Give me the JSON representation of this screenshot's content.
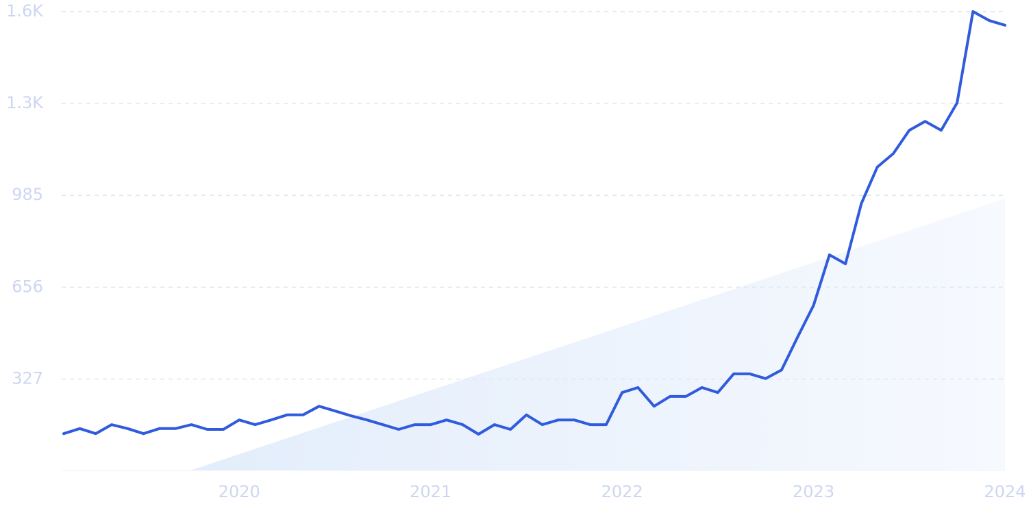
{
  "chart_data": {
    "type": "line",
    "x": [
      2019.083,
      2019.167,
      2019.25,
      2019.333,
      2019.417,
      2019.5,
      2019.583,
      2019.667,
      2019.75,
      2019.833,
      2019.917,
      2020,
      2020.083,
      2020.167,
      2020.25,
      2020.333,
      2020.417,
      2020.5,
      2020.583,
      2020.667,
      2020.75,
      2020.833,
      2020.917,
      2021,
      2021.083,
      2021.167,
      2021.25,
      2021.333,
      2021.417,
      2021.5,
      2021.583,
      2021.667,
      2021.75,
      2021.833,
      2021.917,
      2022,
      2022.083,
      2022.167,
      2022.25,
      2022.333,
      2022.417,
      2022.5,
      2022.583,
      2022.667,
      2022.75,
      2022.833,
      2022.917,
      2023,
      2023.083,
      2023.167,
      2023.25,
      2023.333,
      2023.417,
      2023.5,
      2023.583,
      2023.667,
      2023.75,
      2023.833,
      2023.917,
      2024
    ],
    "values": [
      132,
      150,
      132,
      164,
      150,
      132,
      150,
      150,
      164,
      147,
      147,
      181,
      164,
      181,
      199,
      199,
      230,
      213,
      196,
      181,
      164,
      147,
      164,
      164,
      181,
      164,
      130,
      164,
      147,
      199,
      164,
      181,
      181,
      164,
      164,
      279,
      297,
      230,
      265,
      265,
      297,
      279,
      346,
      346,
      329,
      360,
      478,
      591,
      772,
      740,
      956,
      1086,
      1135,
      1218,
      1250,
      1218,
      1316,
      1643,
      1611,
      1594
    ],
    "color": "#2f5bdc",
    "xlim": [
      2019.083,
      2024
    ],
    "xticks": [
      2020,
      2021,
      2022,
      2023,
      2024
    ],
    "ylim": [
      0,
      1650
    ],
    "yticks": [
      327,
      656,
      985,
      {
        "value": 1314,
        "label": "1.3K"
      },
      {
        "value": 1643,
        "label": "1.6K"
      }
    ],
    "grid": true
  }
}
